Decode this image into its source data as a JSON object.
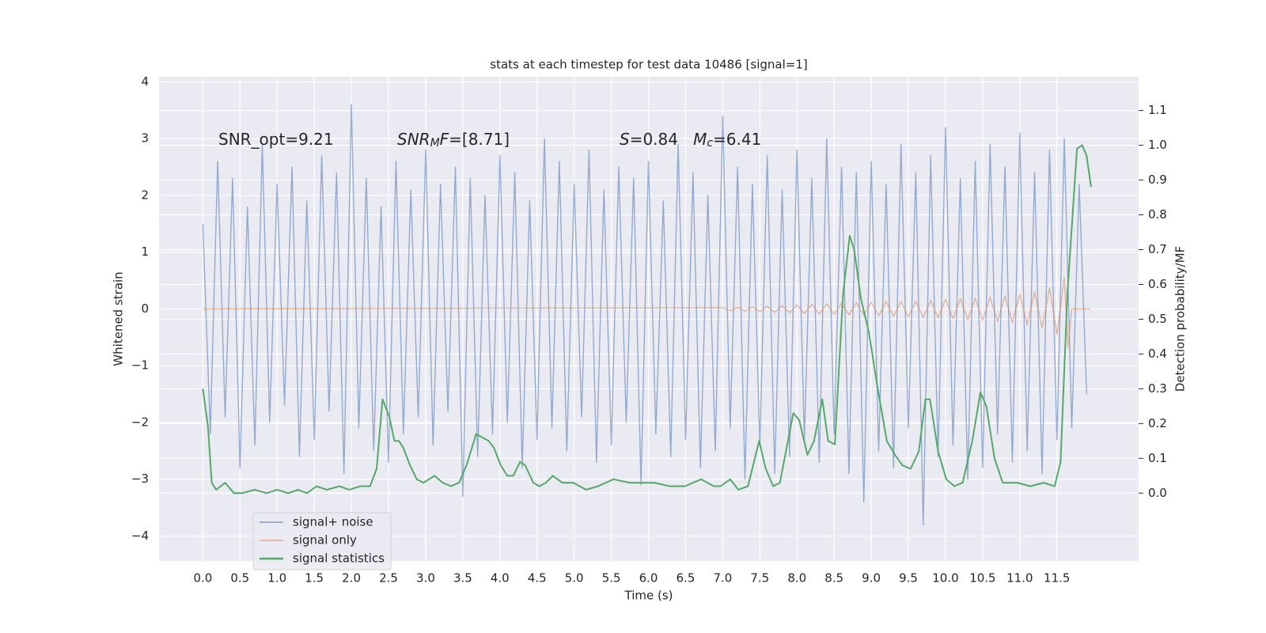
{
  "chart_data": {
    "type": "line",
    "title": "stats at each timestep for test data 10486 [signal=1]",
    "xlabel": "Time (s)",
    "ylabel": "Whitened strain",
    "y2label": "Detection probability/MF",
    "annotations": [
      [
        "SNR_opt=9.21"
      ],
      [
        "SNR",
        "M",
        "F",
        "=[8.71]"
      ],
      [
        "S",
        "=0.84   ",
        "M",
        "c",
        "=6.41"
      ]
    ],
    "xlim": [
      -0.59,
      12.6
    ],
    "ylim": [
      -4.44,
      4.09
    ],
    "y2lim": [
      -0.195,
      1.197
    ],
    "xticks": [
      {
        "value": 0,
        "label": "0.0"
      },
      0.5,
      {
        "value": 1,
        "label": "1.0"
      },
      1.5,
      {
        "value": 2,
        "label": "2.0"
      },
      2.5,
      {
        "value": 3,
        "label": "3.0"
      },
      3.5,
      {
        "value": 4,
        "label": "4.0"
      },
      4.5,
      {
        "value": 5,
        "label": "5.0"
      },
      5.5,
      {
        "value": 6,
        "label": "6.0"
      },
      6.5,
      {
        "value": 7,
        "label": "7.0"
      },
      7.5,
      {
        "value": 8,
        "label": "8.0"
      },
      8.5,
      {
        "value": 9,
        "label": "9.0"
      },
      9.5,
      {
        "value": 10,
        "label": "10.0"
      },
      10.5,
      {
        "value": 11,
        "label": "11.0"
      },
      11.5
    ],
    "yticks": [
      {
        "value": -4,
        "label": "−4"
      },
      {
        "value": -3,
        "label": "−3"
      },
      {
        "value": -2,
        "label": "−2"
      },
      {
        "value": -1,
        "label": "−1"
      },
      0,
      1,
      2,
      3,
      4
    ],
    "y2ticks": [
      {
        "value": 0,
        "label": "0.0"
      },
      0.1,
      0.2,
      0.3,
      0.4,
      0.5,
      0.6,
      0.7,
      0.8,
      0.9,
      {
        "value": 1,
        "label": "1.0"
      },
      1.1
    ],
    "grid": true,
    "legend": "lower left",
    "series": [
      {
        "name": "signal+ noise",
        "color": "#4c72b0",
        "x": [
          0,
          0.1,
          0.2,
          0.3,
          0.4,
          0.5,
          0.6,
          0.7,
          0.8,
          0.9,
          1,
          1.1,
          1.2,
          1.3,
          1.4,
          1.5,
          1.6,
          1.7,
          1.8,
          1.9,
          2,
          2.1,
          2.2,
          2.3,
          2.4,
          2.5,
          2.6,
          2.7,
          2.8,
          2.9,
          3,
          3.1,
          3.2,
          3.3,
          3.4,
          3.5,
          3.6,
          3.7,
          3.8,
          3.9,
          4,
          4.1,
          4.2,
          4.3,
          4.4,
          4.5,
          4.6,
          4.7,
          4.8,
          4.9,
          5,
          5.1,
          5.2,
          5.3,
          5.4,
          5.5,
          5.6,
          5.7,
          5.8,
          5.9,
          6,
          6.1,
          6.2,
          6.3,
          6.4,
          6.5,
          6.6,
          6.7,
          6.8,
          6.9,
          7,
          7.1,
          7.2,
          7.3,
          7.4,
          7.5,
          7.6,
          7.7,
          7.8,
          7.9,
          8,
          8.1,
          8.2,
          8.3,
          8.4,
          8.5,
          8.6,
          8.7,
          8.8,
          8.9,
          9,
          9.1,
          9.2,
          9.3,
          9.4,
          9.5,
          9.6,
          9.7,
          9.8,
          9.9,
          10,
          10.1,
          10.2,
          10.3,
          10.4,
          10.5,
          10.6,
          10.7,
          10.8,
          10.9,
          11,
          11.1,
          11.2,
          11.3,
          11.4,
          11.5,
          11.6,
          11.7,
          11.8,
          11.9
        ],
        "values": [
          1.5,
          -2.2,
          2.6,
          -1.9,
          2.3,
          -2.8,
          1.8,
          -2.4,
          2.9,
          -2.0,
          2.2,
          -1.7,
          2.5,
          -2.6,
          1.9,
          -2.3,
          2.7,
          -1.8,
          2.4,
          -2.9,
          3.6,
          -2.1,
          2.3,
          -2.5,
          1.8,
          -2.7,
          2.6,
          -2.2,
          2.1,
          -1.9,
          2.8,
          -2.4,
          2.2,
          -1.8,
          2.5,
          -3.3,
          2.3,
          -2.6,
          2.0,
          -2.2,
          2.7,
          -2.0,
          2.4,
          -2.8,
          1.9,
          -2.3,
          3.0,
          -2.1,
          2.6,
          -2.5,
          2.2,
          -1.9,
          2.8,
          -2.7,
          2.1,
          -2.4,
          2.5,
          -2.0,
          2.3,
          -3.1,
          2.6,
          -2.2,
          1.9,
          -2.6,
          2.9,
          -2.3,
          2.4,
          -2.8,
          2.0,
          -2.5,
          3.4,
          -2.1,
          2.5,
          -3.0,
          2.2,
          -2.4,
          2.7,
          -2.9,
          2.1,
          -2.6,
          2.8,
          -2.3,
          2.3,
          -2.7,
          3.0,
          -2.2,
          2.5,
          -2.9,
          2.4,
          -3.4,
          2.6,
          -2.5,
          2.2,
          -2.8,
          2.9,
          -2.1,
          2.4,
          -3.8,
          2.7,
          -2.6,
          3.2,
          -2.4,
          2.3,
          -3.0,
          2.6,
          -2.8,
          2.9,
          -2.2,
          2.5,
          -2.7,
          3.1,
          -2.5,
          2.4,
          -2.9,
          2.8,
          -2.3,
          3.0,
          -2.1,
          2.2,
          -1.5
        ]
      },
      {
        "name": "signal only",
        "color": "#dd8452",
        "x": [
          0,
          7,
          7.1,
          7.2,
          7.3,
          7.4,
          7.5,
          7.6,
          7.7,
          7.8,
          7.9,
          8,
          8.1,
          8.2,
          8.3,
          8.4,
          8.5,
          8.6,
          8.7,
          8.8,
          8.9,
          9,
          9.1,
          9.2,
          9.3,
          9.4,
          9.5,
          9.6,
          9.7,
          9.8,
          9.9,
          10,
          10.1,
          10.2,
          10.3,
          10.4,
          10.5,
          10.6,
          10.7,
          10.8,
          10.9,
          11,
          11.1,
          11.2,
          11.3,
          11.4,
          11.5,
          11.6,
          11.65,
          11.7,
          11.95
        ],
        "values": [
          0,
          0.02,
          -0.03,
          0.03,
          -0.04,
          0.04,
          -0.05,
          0.05,
          -0.06,
          0.06,
          -0.07,
          0.07,
          -0.08,
          0.08,
          -0.09,
          0.09,
          -0.1,
          0.1,
          -0.1,
          0.11,
          -0.11,
          0.12,
          -0.12,
          0.13,
          -0.13,
          0.13,
          -0.14,
          0.14,
          -0.15,
          0.15,
          -0.16,
          0.17,
          -0.17,
          0.18,
          -0.19,
          0.19,
          -0.2,
          0.21,
          -0.22,
          0.23,
          -0.24,
          0.26,
          -0.28,
          0.3,
          -0.33,
          0.37,
          -0.45,
          0.55,
          -0.68,
          0,
          0
        ]
      },
      {
        "name": "signal statistics",
        "color": "#55a868",
        "axis": "y2",
        "x": [
          0,
          0.07,
          0.12,
          0.18,
          0.3,
          0.42,
          0.53,
          0.7,
          0.86,
          1,
          1.15,
          1.28,
          1.4,
          1.53,
          1.67,
          1.84,
          1.97,
          2.12,
          2.25,
          2.34,
          2.42,
          2.51,
          2.58,
          2.64,
          2.7,
          2.79,
          2.88,
          2.97,
          3.12,
          3.23,
          3.34,
          3.45,
          3.55,
          3.68,
          3.85,
          3.92,
          4.01,
          4.1,
          4.18,
          4.27,
          4.34,
          4.45,
          4.53,
          4.62,
          4.71,
          4.84,
          4.99,
          5.16,
          5.32,
          5.53,
          5.75,
          6.08,
          6.29,
          6.49,
          6.71,
          6.88,
          6.97,
          7.1,
          7.21,
          7.34,
          7.49,
          7.58,
          7.68,
          7.77,
          7.95,
          8.03,
          8.14,
          8.23,
          8.34,
          8.42,
          8.51,
          8.62,
          8.71,
          8.77,
          8.86,
          8.97,
          9.08,
          9.21,
          9.32,
          9.42,
          9.53,
          9.64,
          9.73,
          9.79,
          9.9,
          10.01,
          10.12,
          10.23,
          10.36,
          10.47,
          10.55,
          10.66,
          10.77,
          10.97,
          11.14,
          11.32,
          11.47,
          11.55,
          11.64,
          11.77,
          11.84,
          11.9,
          11.96
        ],
        "values": [
          0.3,
          0.19,
          0.03,
          0.01,
          0.03,
          0.0,
          0.0,
          0.01,
          0.0,
          0.01,
          0.0,
          0.01,
          0.0,
          0.02,
          0.01,
          0.02,
          0.01,
          0.02,
          0.02,
          0.07,
          0.27,
          0.22,
          0.15,
          0.15,
          0.13,
          0.08,
          0.04,
          0.03,
          0.05,
          0.03,
          0.02,
          0.03,
          0.08,
          0.17,
          0.15,
          0.13,
          0.08,
          0.05,
          0.05,
          0.09,
          0.08,
          0.03,
          0.02,
          0.03,
          0.05,
          0.03,
          0.03,
          0.01,
          0.02,
          0.04,
          0.03,
          0.03,
          0.02,
          0.02,
          0.04,
          0.02,
          0.02,
          0.04,
          0.01,
          0.02,
          0.15,
          0.07,
          0.02,
          0.03,
          0.23,
          0.21,
          0.11,
          0.15,
          0.27,
          0.15,
          0.14,
          0.57,
          0.74,
          0.7,
          0.56,
          0.46,
          0.31,
          0.15,
          0.11,
          0.08,
          0.07,
          0.12,
          0.27,
          0.27,
          0.12,
          0.04,
          0.02,
          0.03,
          0.15,
          0.29,
          0.25,
          0.1,
          0.03,
          0.03,
          0.02,
          0.03,
          0.02,
          0.09,
          0.57,
          0.99,
          1.0,
          0.97,
          0.88
        ]
      }
    ]
  }
}
